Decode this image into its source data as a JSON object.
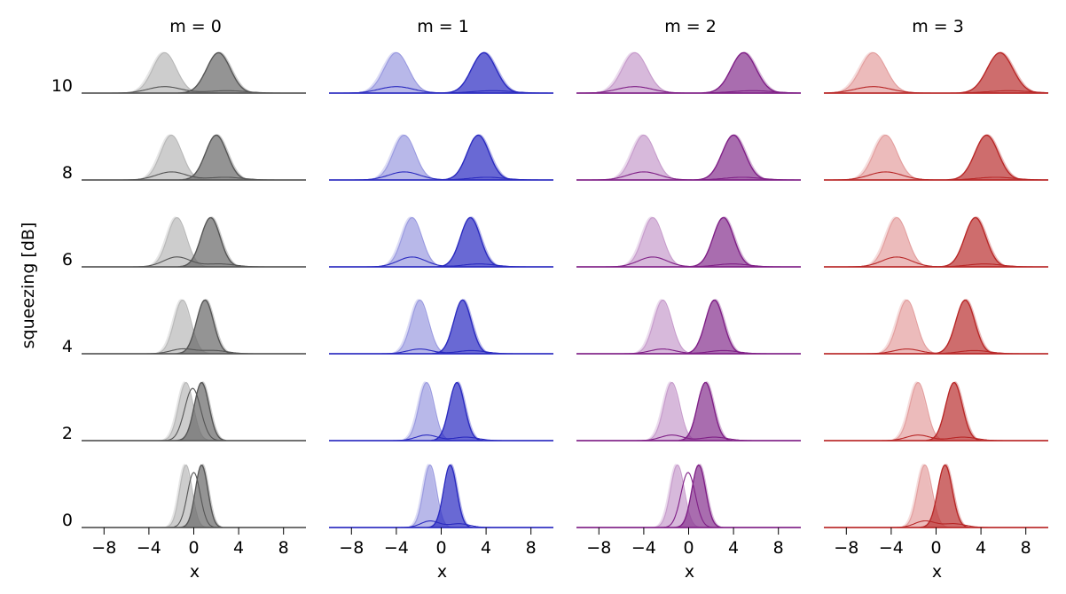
{
  "chart_data": {
    "type": "area",
    "title": "",
    "xlabel": "x",
    "ylabel": "squeezing [dB]",
    "columns": [
      {
        "title": "m = 0",
        "m": 0,
        "color": "#555555",
        "light": "#b8b8b8",
        "dark": "#6e6e6e"
      },
      {
        "title": "m = 1",
        "m": 1,
        "color": "#2a2abf",
        "light": "#9a9ae0",
        "dark": "#3434c4"
      },
      {
        "title": "m = 2",
        "m": 2,
        "color": "#7f1f86",
        "light": "#c79ccc",
        "dark": "#8a3a92"
      },
      {
        "title": "m = 3",
        "m": 3,
        "color": "#b82727",
        "light": "#e39e9e",
        "dark": "#bc3a3a"
      }
    ],
    "squeezing_levels_db": [
      0,
      2,
      4,
      6,
      8,
      10
    ],
    "y_tick_labels": [
      "0",
      "2",
      "4",
      "6",
      "8",
      "10"
    ],
    "xlim": [
      -10,
      10
    ],
    "x_ticks": [
      -8,
      -4,
      0,
      4,
      8
    ],
    "x_tick_labels": [
      "−8",
      "−4",
      "0",
      "4",
      "8"
    ],
    "series_description": "Per panel: two Gaussian-like peaks (left light, right dark) whose separation grows with squeezing and with m; thin line = interference term.",
    "peak_centers": {
      "0": [
        [
          -0.7,
          0.7
        ],
        [
          -0.7,
          0.7
        ],
        [
          -1.0,
          1.0
        ],
        [
          -1.5,
          1.5
        ],
        [
          -2.0,
          2.0
        ],
        [
          -2.6,
          2.2
        ]
      ],
      "1": [
        [
          -1.0,
          0.8
        ],
        [
          -1.3,
          1.4
        ],
        [
          -1.9,
          1.9
        ],
        [
          -2.6,
          2.6
        ],
        [
          -3.3,
          3.3
        ],
        [
          -4.0,
          3.8
        ]
      ],
      "2": [
        [
          -1.0,
          0.9
        ],
        [
          -1.5,
          1.5
        ],
        [
          -2.3,
          2.3
        ],
        [
          -3.2,
          3.1
        ],
        [
          -4.0,
          4.0
        ],
        [
          -4.8,
          4.9
        ]
      ],
      "3": [
        [
          -1.0,
          0.8
        ],
        [
          -1.6,
          1.6
        ],
        [
          -2.6,
          2.6
        ],
        [
          -3.5,
          3.5
        ],
        [
          -4.5,
          4.5
        ],
        [
          -5.6,
          5.7
        ]
      ]
    }
  }
}
